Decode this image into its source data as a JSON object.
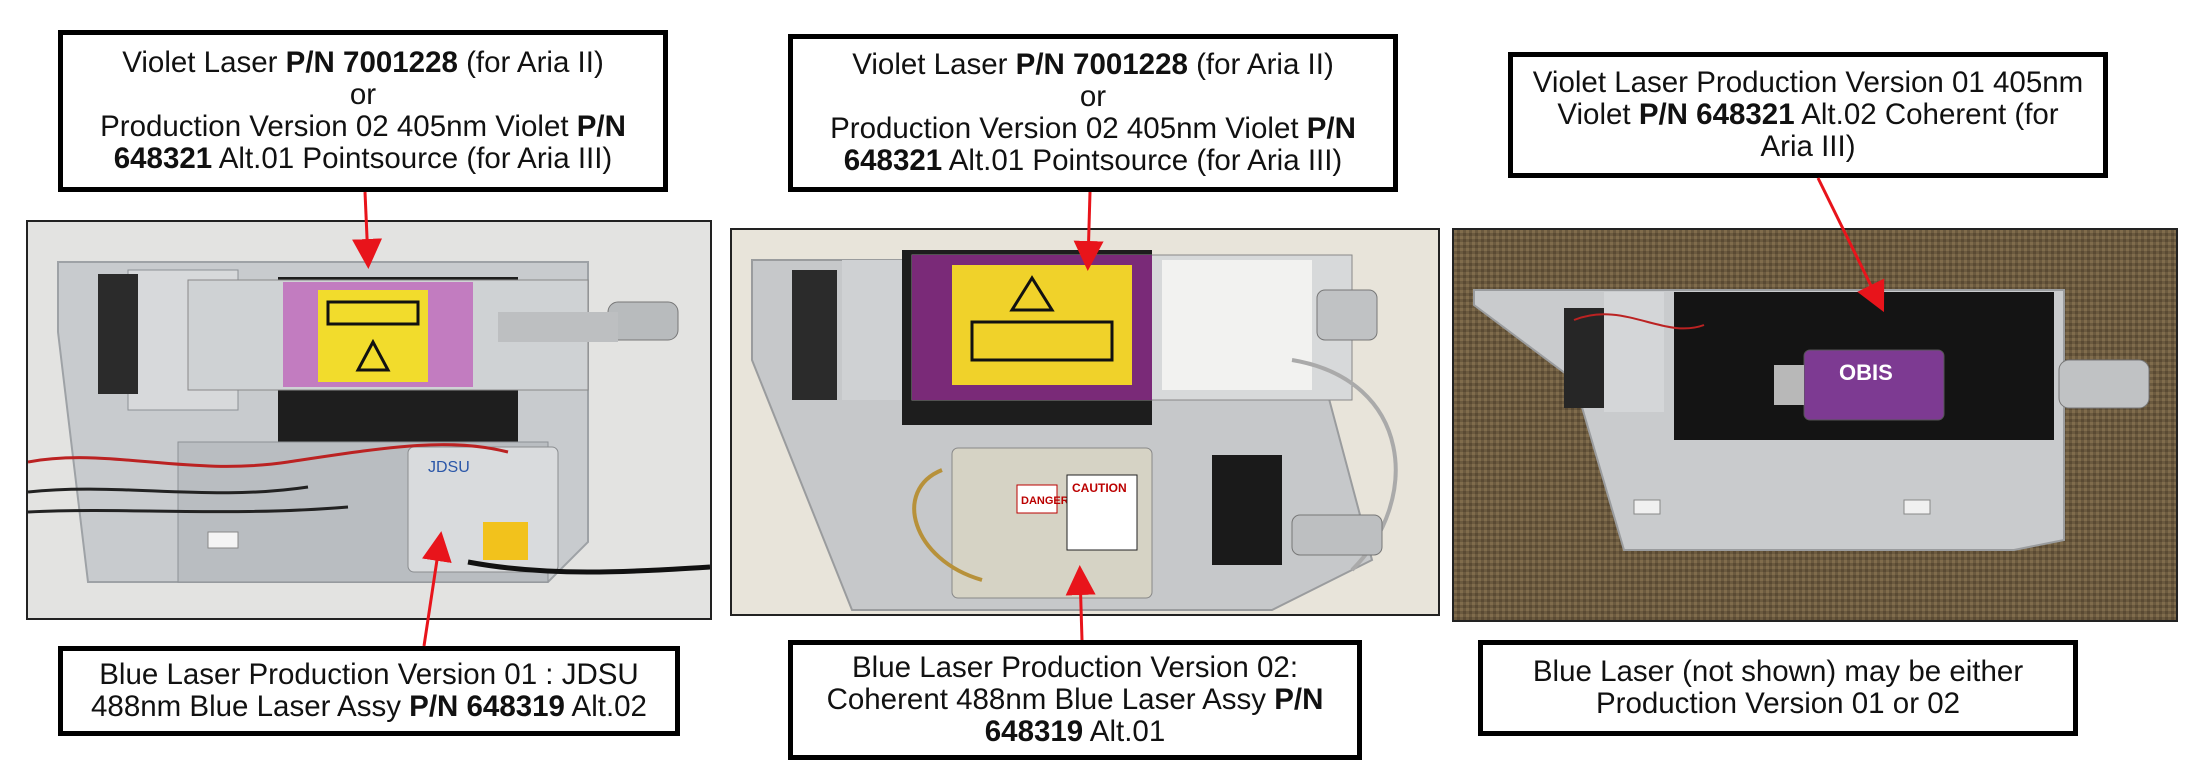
{
  "colors": {
    "arrow": "#e8141b",
    "border": "#000000",
    "label_bg": "#ffffff"
  },
  "panels": [
    {
      "top_label": {
        "l1_a": "Violet Laser ",
        "l1_pn": "P/N 7001228",
        "l1_b": "  (for Aria II)",
        "l2": "or",
        "l3_a": "Production Version 02 405nm Violet ",
        "l3_pn": "P/N",
        "l4_pn": "648321",
        "l4_b": " Alt.01 Pointsource (for Aria III)"
      },
      "bottom_label": {
        "l1": "Blue Laser Production Version 01 : JDSU",
        "l2_a": "488nm Blue Laser Assy ",
        "l2_pn": "P/N 648319",
        "l2_b": " Alt.02"
      },
      "photo": {
        "label_text": "JDSU"
      }
    },
    {
      "top_label": {
        "l1_a": "Violet Laser ",
        "l1_pn": "P/N 7001228",
        "l1_b": "  (for Aria II)",
        "l2": "or",
        "l3_a": "Production Version 02 405nm Violet ",
        "l3_pn": "P/N",
        "l4_pn": "648321",
        "l4_b": " Alt.01 Pointsource (for Aria III)"
      },
      "bottom_label": {
        "l1": "Blue Laser Production Version 02:",
        "l2_a": "Coherent 488nm Blue Laser Assy ",
        "l2_pn": "P/N",
        "l3_pn": "648319",
        "l3_b": " Alt.01"
      },
      "photo": {
        "sticker1": "DANGER",
        "sticker2": "CAUTION"
      }
    },
    {
      "top_label": {
        "l1": "Violet Laser Production Version 01 405nm",
        "l2_a": "Violet ",
        "l2_pn": "P/N 648321",
        "l2_b": " Alt.02 Coherent (for",
        "l3": "Aria III)"
      },
      "bottom_label": {
        "l1": "Blue Laser (not shown) may be either",
        "l2": "Production Version 01 or 02"
      },
      "photo": {
        "module_text": "OBIS"
      }
    }
  ]
}
